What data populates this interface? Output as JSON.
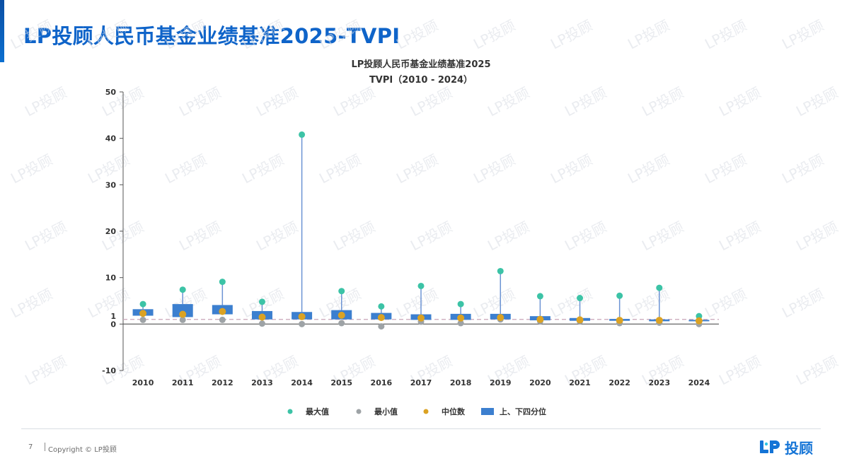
{
  "page": {
    "title": "LP投顾人民币基金业绩基准2025-TVPI",
    "page_number": "7",
    "copyright": "Copyright © LP投顾",
    "watermark_text": "LP投顾",
    "logo_text": "投顾"
  },
  "colors": {
    "title": "#0f64c9",
    "box": "#3c7fcf",
    "whisker": "#6c94d4",
    "max_dot": "#3cc3a6",
    "min_dot": "#9ea3a6",
    "median_dot": "#dba223",
    "ref_line": "#c9a5b8",
    "logo": "#1474d6"
  },
  "chart_data": {
    "type": "box",
    "title": "LP投顾人民币基金业绩基准2025",
    "subtitle": "TVPI（2010 - 2024）",
    "xlabel": "",
    "ylabel": "",
    "ylim": [
      -10,
      50
    ],
    "yticks": [
      -10,
      0,
      1,
      10,
      20,
      30,
      40,
      50
    ],
    "reference_line": 1,
    "grid": false,
    "legend_position": "bottom",
    "legend": [
      {
        "key": "max",
        "label": "最大值"
      },
      {
        "key": "min",
        "label": "最小值"
      },
      {
        "key": "median",
        "label": "中位数"
      },
      {
        "key": "iqr",
        "label": "上、下四分位"
      }
    ],
    "categories": [
      "2010",
      "2011",
      "2012",
      "2013",
      "2014",
      "2015",
      "2016",
      "2017",
      "2018",
      "2019",
      "2020",
      "2021",
      "2022",
      "2023",
      "2024"
    ],
    "series": {
      "max": [
        4.3,
        7.4,
        9.1,
        4.8,
        40.8,
        7.1,
        3.8,
        8.2,
        4.3,
        11.4,
        6.0,
        5.6,
        6.1,
        7.8,
        1.7
      ],
      "q3": [
        3.2,
        4.3,
        4.1,
        2.8,
        2.6,
        3.0,
        2.4,
        2.1,
        2.2,
        2.2,
        1.7,
        1.3,
        1.1,
        1.0,
        0.9
      ],
      "median": [
        2.3,
        2.1,
        2.7,
        1.5,
        1.6,
        1.9,
        1.4,
        1.3,
        1.3,
        1.4,
        1.0,
        0.9,
        0.8,
        0.8,
        0.7
      ],
      "q1": [
        1.8,
        1.5,
        2.1,
        1.0,
        1.0,
        1.0,
        1.0,
        0.9,
        0.9,
        1.0,
        0.8,
        0.7,
        0.7,
        0.6,
        0.6
      ],
      "min": [
        0.9,
        0.9,
        0.9,
        0.1,
        0.0,
        0.2,
        -0.5,
        0.5,
        0.2,
        1.0,
        0.6,
        0.6,
        0.2,
        0.3,
        0.0
      ]
    }
  }
}
